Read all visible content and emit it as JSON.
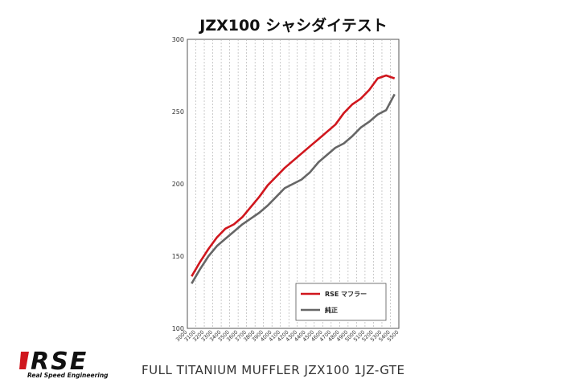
{
  "chart_data": {
    "type": "line",
    "title": "JZX100 シャシダイテスト",
    "xlabel": "",
    "ylabel": "",
    "ylim": [
      100,
      300
    ],
    "yticks": [
      100,
      150,
      200,
      250,
      300
    ],
    "xlim": [
      3000,
      5500
    ],
    "x": [
      3000,
      3100,
      3200,
      3300,
      3400,
      3500,
      3600,
      3700,
      3800,
      3900,
      4000,
      4100,
      4200,
      4300,
      4400,
      4500,
      4600,
      4700,
      4800,
      4900,
      5000,
      5100,
      5200,
      5300,
      5400,
      5500
    ],
    "grid": "vertical",
    "legend_position": "bottom-right",
    "series": [
      {
        "name": "RSE マフラー",
        "color": "#d0161d",
        "x": [
          3050,
          3150,
          3250,
          3350,
          3450,
          3550,
          3650,
          3750,
          3850,
          3950,
          4050,
          4150,
          4250,
          4350,
          4450,
          4550,
          4650,
          4750,
          4850,
          4950,
          5050,
          5150,
          5250,
          5350,
          5450
        ],
        "values": [
          136,
          146,
          155,
          163,
          169,
          172,
          177,
          184,
          191,
          199,
          205,
          211,
          216,
          221,
          226,
          231,
          236,
          241,
          249,
          255,
          259,
          265,
          273,
          275,
          273
        ]
      },
      {
        "name": "純正",
        "color": "#666666",
        "x": [
          3050,
          3150,
          3250,
          3350,
          3450,
          3550,
          3650,
          3750,
          3850,
          3950,
          4050,
          4150,
          4250,
          4350,
          4450,
          4550,
          4650,
          4750,
          4850,
          4950,
          5050,
          5150,
          5250,
          5350,
          5450
        ],
        "values": [
          131,
          141,
          150,
          157,
          162,
          167,
          172,
          176,
          180,
          185,
          191,
          197,
          200,
          203,
          208,
          215,
          220,
          225,
          228,
          233,
          239,
          243,
          248,
          251,
          262
        ]
      }
    ]
  },
  "logo": {
    "text": "RSE",
    "tagline": "Real Speed Engineering",
    "accent_color": "#d0161d"
  },
  "footer": {
    "text": "FULL TITANIUM MUFFLER  JZX100 1JZ-GTE"
  }
}
